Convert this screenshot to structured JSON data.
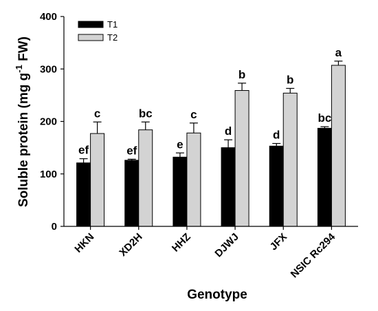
{
  "chart_data": {
    "type": "bar",
    "categories": [
      "HKN",
      "XD2H",
      "HHZ",
      "DJWJ",
      "JFX",
      "NSIC Rc294"
    ],
    "series": [
      {
        "name": "T1",
        "color": "#000000",
        "values": [
          121,
          126,
          132,
          150,
          153,
          187
        ],
        "errors": [
          8,
          2,
          8,
          15,
          5,
          3
        ],
        "letters": [
          "ef",
          "ef",
          "e",
          "d",
          "d",
          "bc"
        ]
      },
      {
        "name": "T2",
        "color": "#d3d3d3",
        "values": [
          177,
          184,
          178,
          259,
          254,
          307
        ],
        "errors": [
          22,
          15,
          19,
          14,
          9,
          8
        ],
        "letters": [
          "c",
          "bc",
          "c",
          "b",
          "b",
          "a"
        ]
      }
    ],
    "xlabel": "Genotype",
    "ylabel": "Soluble protein (mg g",
    "ylabel_superscript": "-1",
    "ylabel_suffix": " FW)",
    "ylim": [
      0,
      400
    ],
    "yticks": [
      0,
      100,
      200,
      300,
      400
    ],
    "grid": false,
    "legend_position": "top-left"
  }
}
